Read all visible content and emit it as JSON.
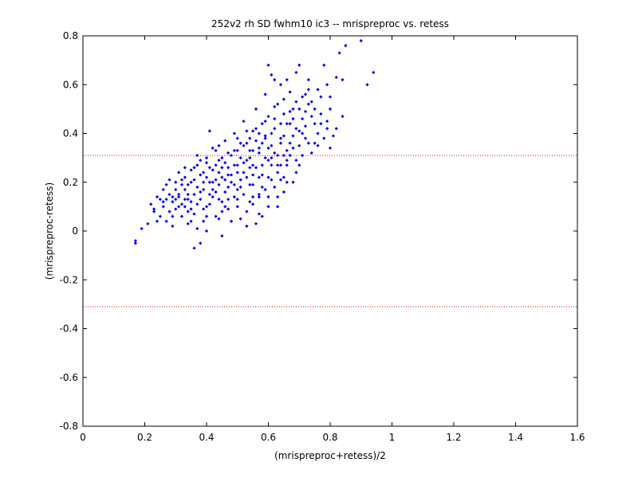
{
  "chart_data": {
    "type": "scatter",
    "title": "252v2 rh SD fwhm10 ic3 -- mrispreproc vs. retess",
    "xlabel": "(mrispreproc+retess)/2",
    "ylabel": "(mrispreproc-retess)",
    "xlim": [
      0,
      1.6
    ],
    "ylim": [
      -0.8,
      0.8
    ],
    "xticks": [
      "0",
      "0.2",
      "0.4",
      "0.6",
      "0.8",
      "1",
      "1.2",
      "1.4",
      "1.6"
    ],
    "yticks": [
      "-0.8",
      "-0.6",
      "-0.4",
      "-0.2",
      "0",
      "0.2",
      "0.4",
      "0.6",
      "0.8"
    ],
    "grid": false,
    "colors": {
      "points": "#0000ff",
      "reference_lines": "#ff0000",
      "axes": "#000000"
    },
    "reference_lines": [
      {
        "y": 0.31,
        "style": "dotted"
      },
      {
        "y": -0.31,
        "style": "dotted"
      }
    ],
    "series": [
      {
        "marker": "dot",
        "points": [
          [
            0.17,
            -0.04
          ],
          [
            0.17,
            -0.05
          ],
          [
            0.19,
            0.01
          ],
          [
            0.21,
            0.03
          ],
          [
            0.22,
            0.11
          ],
          [
            0.23,
            0.08
          ],
          [
            0.24,
            0.14
          ],
          [
            0.25,
            0.06
          ],
          [
            0.26,
            0.17
          ],
          [
            0.26,
            0.1
          ],
          [
            0.27,
            0.04
          ],
          [
            0.27,
            0.13
          ],
          [
            0.28,
            0.08
          ],
          [
            0.28,
            0.21
          ],
          [
            0.29,
            0.12
          ],
          [
            0.29,
            0.02
          ],
          [
            0.3,
            0.17
          ],
          [
            0.3,
            0.09
          ],
          [
            0.31,
            0.24
          ],
          [
            0.31,
            0.14
          ],
          [
            0.32,
            0.06
          ],
          [
            0.32,
            0.19
          ],
          [
            0.33,
            0.1
          ],
          [
            0.33,
            0.22
          ],
          [
            0.34,
            0.15
          ],
          [
            0.34,
            0.03
          ],
          [
            0.35,
            0.2
          ],
          [
            0.35,
            0.12
          ],
          [
            0.36,
            0.26
          ],
          [
            0.36,
            0.07
          ],
          [
            0.37,
            0.18
          ],
          [
            0.37,
            0.31
          ],
          [
            0.38,
            0.13
          ],
          [
            0.38,
            0.23
          ],
          [
            0.39,
            0.04
          ],
          [
            0.39,
            0.17
          ],
          [
            0.4,
            0.28
          ],
          [
            0.4,
            0.1
          ],
          [
            0.41,
            0.41
          ],
          [
            0.41,
            0.2
          ],
          [
            0.42,
            0.14
          ],
          [
            0.42,
            0.25
          ],
          [
            0.43,
            0.33
          ],
          [
            0.43,
            0.06
          ],
          [
            0.44,
            0.19
          ],
          [
            0.44,
            0.29
          ],
          [
            0.45,
            0.12
          ],
          [
            0.45,
            0.22
          ],
          [
            0.46,
            0.37
          ],
          [
            0.46,
            0.16
          ],
          [
            0.47,
            0.26
          ],
          [
            0.47,
            0.09
          ],
          [
            0.48,
            0.31
          ],
          [
            0.48,
            0.2
          ],
          [
            0.49,
            0.14
          ],
          [
            0.49,
            0.4
          ],
          [
            0.5,
            0.24
          ],
          [
            0.5,
            0.33
          ],
          [
            0.51,
            0.18
          ],
          [
            0.51,
            0.05
          ],
          [
            0.52,
            0.28
          ],
          [
            0.52,
            0.45
          ],
          [
            0.53,
            0.22
          ],
          [
            0.53,
            0.36
          ],
          [
            0.54,
            0.12
          ],
          [
            0.54,
            0.3
          ],
          [
            0.55,
            0.41
          ],
          [
            0.55,
            0.19
          ],
          [
            0.56,
            0.26
          ],
          [
            0.56,
            0.5
          ],
          [
            0.57,
            0.34
          ],
          [
            0.57,
            0.15
          ],
          [
            0.58,
            0.44
          ],
          [
            0.58,
            0.23
          ],
          [
            0.59,
            0.38
          ],
          [
            0.59,
            0.56
          ],
          [
            0.6,
            0.29
          ],
          [
            0.6,
            0.47
          ],
          [
            0.61,
            0.21
          ],
          [
            0.61,
            0.35
          ],
          [
            0.62,
            0.62
          ],
          [
            0.62,
            0.42
          ],
          [
            0.63,
            0.27
          ],
          [
            0.63,
            0.52
          ],
          [
            0.64,
            0.38
          ],
          [
            0.64,
            0.6
          ],
          [
            0.65,
            0.31
          ],
          [
            0.65,
            0.48
          ],
          [
            0.66,
            0.44
          ],
          [
            0.67,
            0.57
          ],
          [
            0.67,
            0.36
          ],
          [
            0.68,
            0.5
          ],
          [
            0.69,
            0.65
          ],
          [
            0.7,
            0.41
          ],
          [
            0.71,
            0.55
          ],
          [
            0.72,
            0.38
          ],
          [
            0.73,
            0.62
          ],
          [
            0.74,
            0.47
          ],
          [
            0.75,
            0.36
          ],
          [
            0.76,
            0.58
          ],
          [
            0.77,
            0.44
          ],
          [
            0.78,
            0.68
          ],
          [
            0.79,
            0.42
          ],
          [
            0.8,
            0.55
          ],
          [
            0.81,
            0.39
          ],
          [
            0.82,
            0.63
          ],
          [
            0.83,
            0.73
          ],
          [
            0.84,
            0.47
          ],
          [
            0.85,
            0.76
          ],
          [
            0.9,
            0.78
          ],
          [
            0.92,
            0.6
          ],
          [
            0.94,
            0.65
          ],
          [
            0.36,
            -0.07
          ],
          [
            0.38,
            -0.05
          ],
          [
            0.45,
            -0.02
          ],
          [
            0.6,
            0.68
          ],
          [
            0.61,
            0.64
          ],
          [
            0.66,
            0.62
          ],
          [
            0.7,
            0.68
          ],
          [
            0.73,
            0.58
          ],
          [
            0.32,
            0.11
          ],
          [
            0.35,
            0.09
          ],
          [
            0.4,
            0.06
          ],
          [
            0.43,
            0.16
          ],
          [
            0.47,
            0.13
          ],
          [
            0.5,
            0.1
          ],
          [
            0.53,
            0.08
          ],
          [
            0.56,
            0.03
          ],
          [
            0.58,
            0.06
          ],
          [
            0.6,
            0.1
          ],
          [
            0.63,
            0.14
          ],
          [
            0.65,
            0.16
          ],
          [
            0.68,
            0.2
          ],
          [
            0.44,
            0.05
          ],
          [
            0.48,
            0.04
          ],
          [
            0.52,
            0.15
          ],
          [
            0.55,
            0.14
          ],
          [
            0.57,
            0.07
          ],
          [
            0.62,
            0.18
          ],
          [
            0.64,
            0.21
          ],
          [
            0.39,
            0.24
          ],
          [
            0.41,
            0.15
          ],
          [
            0.46,
            0.21
          ],
          [
            0.49,
            0.27
          ],
          [
            0.51,
            0.3
          ],
          [
            0.54,
            0.26
          ],
          [
            0.57,
            0.32
          ],
          [
            0.59,
            0.3
          ],
          [
            0.61,
            0.27
          ],
          [
            0.66,
            0.33
          ],
          [
            0.68,
            0.39
          ],
          [
            0.7,
            0.35
          ],
          [
            0.72,
            0.43
          ],
          [
            0.74,
            0.32
          ],
          [
            0.76,
            0.4
          ],
          [
            0.78,
            0.38
          ],
          [
            0.8,
            0.34
          ],
          [
            0.3,
            0.2
          ],
          [
            0.33,
            0.26
          ],
          [
            0.36,
            0.21
          ],
          [
            0.42,
            0.34
          ],
          [
            0.45,
            0.3
          ],
          [
            0.5,
            0.38
          ],
          [
            0.53,
            0.41
          ],
          [
            0.55,
            0.33
          ],
          [
            0.58,
            0.36
          ],
          [
            0.62,
            0.46
          ],
          [
            0.64,
            0.44
          ],
          [
            0.67,
            0.49
          ],
          [
            0.69,
            0.53
          ],
          [
            0.71,
            0.46
          ],
          [
            0.73,
            0.52
          ],
          [
            0.75,
            0.5
          ],
          [
            0.77,
            0.48
          ],
          [
            0.79,
            0.6
          ],
          [
            0.34,
            0.19
          ],
          [
            0.37,
            0.11
          ],
          [
            0.4,
            0.22
          ],
          [
            0.43,
            0.27
          ],
          [
            0.46,
            0.1
          ],
          [
            0.49,
            0.19
          ],
          [
            0.52,
            0.24
          ],
          [
            0.55,
            0.27
          ],
          [
            0.58,
            0.18
          ],
          [
            0.6,
            0.22
          ],
          [
            0.63,
            0.24
          ],
          [
            0.66,
            0.27
          ],
          [
            0.69,
            0.29
          ],
          [
            0.31,
            0.15
          ],
          [
            0.34,
            0.08
          ],
          [
            0.38,
            0.16
          ],
          [
            0.41,
            0.11
          ],
          [
            0.44,
            0.24
          ],
          [
            0.47,
            0.18
          ],
          [
            0.51,
            0.21
          ],
          [
            0.54,
            0.19
          ],
          [
            0.57,
            0.22
          ],
          [
            0.59,
            0.17
          ],
          [
            0.62,
            0.32
          ],
          [
            0.65,
            0.39
          ],
          [
            0.68,
            0.34
          ],
          [
            0.71,
            0.4
          ],
          [
            0.26,
            0.12
          ],
          [
            0.28,
            0.15
          ],
          [
            0.29,
            0.06
          ],
          [
            0.33,
            0.17
          ],
          [
            0.35,
            0.25
          ],
          [
            0.39,
            0.09
          ],
          [
            0.42,
            0.2
          ],
          [
            0.45,
            0.26
          ],
          [
            0.48,
            0.23
          ],
          [
            0.5,
            0.17
          ],
          [
            0.56,
            0.42
          ],
          [
            0.59,
            0.45
          ],
          [
            0.61,
            0.4
          ],
          [
            0.64,
            0.36
          ],
          [
            0.67,
            0.44
          ],
          [
            0.7,
            0.5
          ],
          [
            0.72,
            0.56
          ],
          [
            0.74,
            0.53
          ],
          [
            0.76,
            0.35
          ],
          [
            0.79,
            0.45
          ],
          [
            0.82,
            0.42
          ],
          [
            0.84,
            0.62
          ],
          [
            0.3,
            0.13
          ],
          [
            0.32,
            0.21
          ],
          [
            0.37,
            0.27
          ],
          [
            0.4,
            0.3
          ],
          [
            0.43,
            0.21
          ],
          [
            0.46,
            0.28
          ],
          [
            0.49,
            0.33
          ],
          [
            0.52,
            0.35
          ],
          [
            0.54,
            0.38
          ],
          [
            0.57,
            0.4
          ],
          [
            0.6,
            0.34
          ],
          [
            0.63,
            0.31
          ],
          [
            0.66,
            0.29
          ],
          [
            0.69,
            0.42
          ],
          [
            0.23,
            0.09
          ],
          [
            0.24,
            0.04
          ],
          [
            0.25,
            0.13
          ],
          [
            0.27,
            0.19
          ],
          [
            0.29,
            0.14
          ],
          [
            0.31,
            0.1
          ],
          [
            0.33,
            0.13
          ],
          [
            0.36,
            0.15
          ],
          [
            0.39,
            0.2
          ],
          [
            0.42,
            0.17
          ],
          [
            0.44,
            0.13
          ],
          [
            0.47,
            0.23
          ],
          [
            0.5,
            0.27
          ],
          [
            0.53,
            0.29
          ],
          [
            0.55,
            0.23
          ],
          [
            0.58,
            0.27
          ],
          [
            0.61,
            0.3
          ],
          [
            0.64,
            0.27
          ],
          [
            0.67,
            0.31
          ],
          [
            0.7,
            0.27
          ],
          [
            0.62,
            0.51
          ],
          [
            0.65,
            0.54
          ],
          [
            0.68,
            0.46
          ],
          [
            0.72,
            0.49
          ],
          [
            0.75,
            0.44
          ],
          [
            0.77,
            0.55
          ],
          [
            0.8,
            0.5
          ],
          [
            0.38,
            0.29
          ],
          [
            0.41,
            0.26
          ],
          [
            0.44,
            0.35
          ],
          [
            0.47,
            0.32
          ],
          [
            0.51,
            0.36
          ],
          [
            0.54,
            0.33
          ],
          [
            0.56,
            0.37
          ],
          [
            0.59,
            0.39
          ],
          [
            0.35,
            0.04
          ],
          [
            0.37,
            0.01
          ],
          [
            0.4,
            0.0
          ],
          [
            0.34,
            0.13
          ],
          [
            0.45,
            0.08
          ],
          [
            0.5,
            0.13
          ],
          [
            0.53,
            0.02
          ],
          [
            0.55,
            0.11
          ],
          [
            0.57,
            0.14
          ],
          [
            0.6,
            0.14
          ],
          [
            0.63,
            0.1
          ],
          [
            0.65,
            0.22
          ],
          [
            0.66,
            0.2
          ],
          [
            0.69,
            0.24
          ],
          [
            0.71,
            0.31
          ],
          [
            0.73,
            0.36
          ]
        ]
      }
    ]
  }
}
